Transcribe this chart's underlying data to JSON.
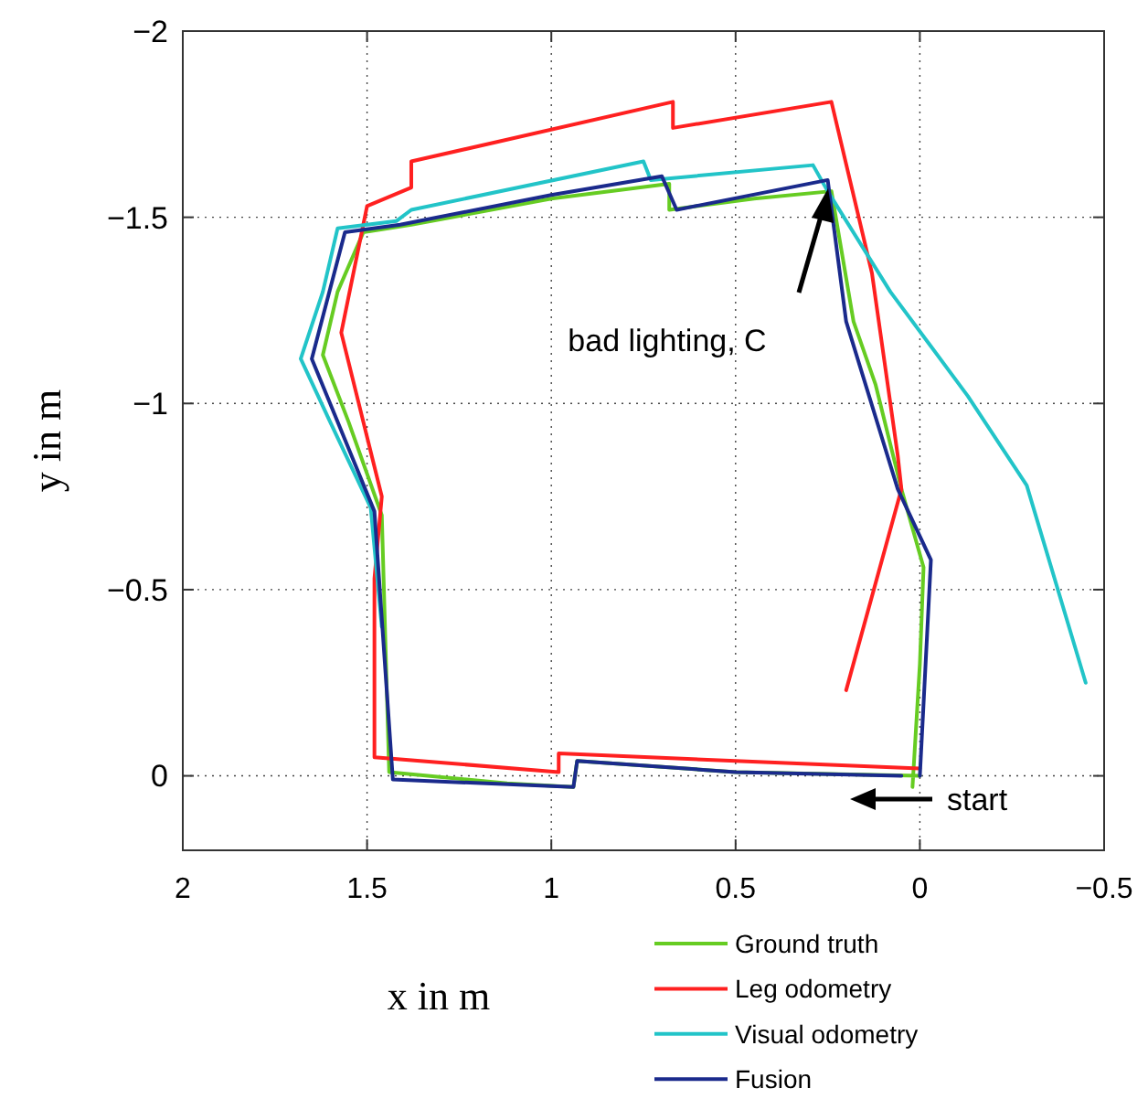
{
  "chart_data": {
    "type": "line",
    "xlabel": "x in m",
    "ylabel": "y in m",
    "xlim": [
      2,
      -0.5
    ],
    "ylim": [
      0.2,
      -2
    ],
    "xticks": [
      2,
      1.5,
      1,
      0.5,
      0,
      {
        "value": -0.5,
        "label": "−0.5"
      }
    ],
    "yticks": [
      {
        "value": -2,
        "label": "−2"
      },
      {
        "value": -1.5,
        "label": "−1.5"
      },
      {
        "value": -1,
        "label": "−1"
      },
      {
        "value": -0.5,
        "label": "−0.5"
      },
      0
    ],
    "grid": true,
    "legend": "bottom right",
    "line_style": "solid",
    "marker": "none",
    "annotations": [
      "bad lighting, C",
      "start"
    ],
    "series": [
      {
        "name": "Ground truth",
        "color": "#66cc22",
        "x": [
          0.02,
          0.0,
          -0.01,
          0.05,
          0.12,
          0.18,
          0.24,
          0.45,
          0.68,
          0.68,
          1.0,
          1.38,
          1.51,
          1.58,
          1.62,
          1.55,
          1.46,
          1.45,
          1.44,
          1.12,
          0.94,
          0.93,
          0.5,
          0.0
        ],
        "values": [
          0.03,
          -0.3,
          -0.56,
          -0.77,
          -1.05,
          -1.22,
          -1.57,
          -1.55,
          -1.52,
          -1.59,
          -1.55,
          -1.48,
          -1.46,
          -1.3,
          -1.13,
          -0.95,
          -0.7,
          -0.35,
          -0.01,
          0.02,
          0.03,
          -0.04,
          -0.01,
          0.0
        ]
      },
      {
        "name": "Leg odometry",
        "color": "#ff2020",
        "x": [
          0.0,
          0.5,
          0.98,
          0.98,
          1.48,
          1.48,
          1.46,
          1.57,
          1.5,
          1.38,
          1.38,
          0.67,
          0.67,
          0.24,
          0.13,
          0.06,
          0.05,
          0.2
        ],
        "values": [
          -0.02,
          -0.04,
          -0.06,
          -0.01,
          -0.05,
          -0.53,
          -0.75,
          -1.19,
          -1.53,
          -1.58,
          -1.65,
          -1.81,
          -1.74,
          -1.81,
          -1.35,
          -0.86,
          -0.77,
          -0.23
        ]
      },
      {
        "name": "Visual odometry",
        "color": "#22c4c8",
        "x": [
          1.46,
          1.49,
          1.6,
          1.68,
          1.62,
          1.58,
          1.42,
          1.38,
          0.75,
          0.73,
          0.29,
          0.25,
          0.08,
          -0.13,
          -0.29,
          -0.45
        ],
        "values": [
          -0.4,
          -0.72,
          -0.95,
          -1.12,
          -1.3,
          -1.47,
          -1.49,
          -1.52,
          -1.65,
          -1.6,
          -1.64,
          -1.57,
          -1.3,
          -1.02,
          -0.78,
          -0.25
        ]
      },
      {
        "name": "Fusion",
        "color": "#1a2a8c",
        "x": [
          0.0,
          -0.03,
          0.06,
          0.2,
          0.25,
          0.66,
          0.7,
          1.0,
          1.41,
          1.56,
          1.65,
          1.48,
          1.43,
          0.94,
          0.93,
          0.5,
          0.05
        ],
        "values": [
          0.0,
          -0.58,
          -0.77,
          -1.22,
          -1.6,
          -1.52,
          -1.61,
          -1.56,
          -1.48,
          -1.46,
          -1.12,
          -0.71,
          0.01,
          0.03,
          -0.04,
          -0.01,
          0.0
        ]
      }
    ]
  }
}
